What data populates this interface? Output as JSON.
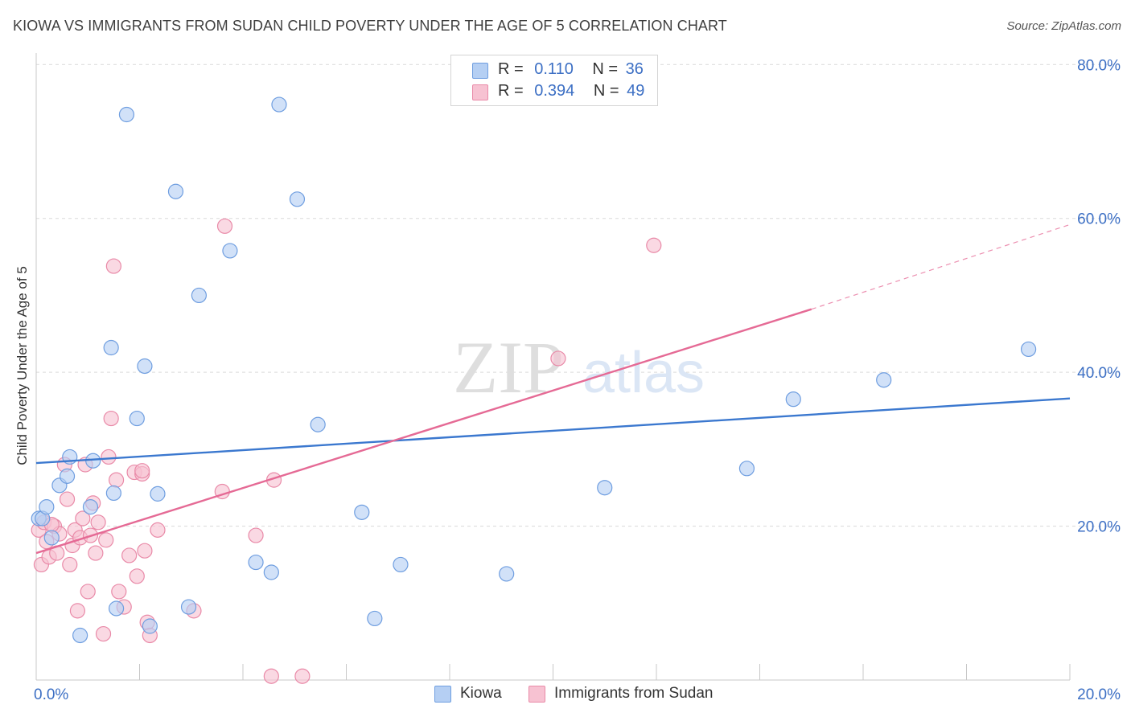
{
  "header": {
    "title": "KIOWA VS IMMIGRANTS FROM SUDAN CHILD POVERTY UNDER THE AGE OF 5 CORRELATION CHART",
    "source": "Source: ZipAtlas.com"
  },
  "watermark": {
    "part1": "ZIP",
    "part2": "atlas"
  },
  "colors": {
    "kiowa_fill": "#b5cff3",
    "kiowa_stroke": "#6f9ee0",
    "kiowa_line": "#3b78cf",
    "sudan_fill": "#f7c2d2",
    "sudan_stroke": "#e98aa8",
    "sudan_line": "#e56a95",
    "axis_text": "#3c6fc4",
    "grid": "#d9d9d9"
  },
  "legend_top": {
    "rows": [
      {
        "r_label": "R =",
        "r_value": "0.110",
        "n_label": "N =",
        "n_value": "36"
      },
      {
        "r_label": "R =",
        "r_value": "0.394",
        "n_label": "N =",
        "n_value": "49"
      }
    ]
  },
  "legend_bottom": {
    "kiowa": "Kiowa",
    "sudan": "Immigrants from Sudan"
  },
  "chart_data": {
    "type": "scatter",
    "title": "KIOWA VS IMMIGRANTS FROM SUDAN CHILD POVERTY UNDER THE AGE OF 5 CORRELATION CHART",
    "xlabel": "",
    "ylabel": "Child Poverty Under the Age of 5",
    "xlim": [
      0,
      20
    ],
    "ylim": [
      0,
      80
    ],
    "x_tick_labels": [
      "0.0%",
      "20.0%"
    ],
    "y_tick_labels": [
      "20.0%",
      "40.0%",
      "60.0%",
      "80.0%"
    ],
    "y_ticks": [
      20,
      40,
      60,
      80
    ],
    "grid": true,
    "series": [
      {
        "name": "Kiowa",
        "points": [
          [
            0.05,
            21.0
          ],
          [
            0.12,
            21.0
          ],
          [
            0.2,
            22.5
          ],
          [
            0.3,
            18.5
          ],
          [
            0.45,
            25.3
          ],
          [
            0.6,
            26.5
          ],
          [
            0.65,
            29.0
          ],
          [
            0.85,
            5.8
          ],
          [
            1.1,
            28.5
          ],
          [
            1.05,
            22.5
          ],
          [
            1.5,
            24.3
          ],
          [
            1.55,
            9.3
          ],
          [
            1.75,
            73.5
          ],
          [
            1.95,
            34.0
          ],
          [
            2.1,
            40.8
          ],
          [
            2.2,
            7.0
          ],
          [
            2.35,
            24.2
          ],
          [
            2.7,
            63.5
          ],
          [
            2.95,
            9.5
          ],
          [
            3.15,
            50.0
          ],
          [
            3.75,
            55.8
          ],
          [
            4.25,
            15.3
          ],
          [
            4.55,
            14.0
          ],
          [
            4.7,
            74.8
          ],
          [
            5.05,
            62.5
          ],
          [
            5.45,
            33.2
          ],
          [
            6.3,
            21.8
          ],
          [
            6.55,
            8.0
          ],
          [
            7.05,
            15.0
          ],
          [
            9.1,
            13.8
          ],
          [
            11.0,
            25.0
          ],
          [
            13.75,
            27.5
          ],
          [
            14.65,
            36.5
          ],
          [
            16.4,
            39.0
          ],
          [
            19.2,
            43.0
          ],
          [
            1.45,
            43.2
          ]
        ],
        "trend": {
          "x0": 0,
          "y0": 28.2,
          "x1": 20,
          "y1": 36.6
        }
      },
      {
        "name": "Immigrants from Sudan",
        "points": [
          [
            0.05,
            19.5
          ],
          [
            0.1,
            15.0
          ],
          [
            0.15,
            20.5
          ],
          [
            0.2,
            18.0
          ],
          [
            0.25,
            16.0
          ],
          [
            0.35,
            20.0
          ],
          [
            0.4,
            16.5
          ],
          [
            0.45,
            19.0
          ],
          [
            0.55,
            28.0
          ],
          [
            0.6,
            23.5
          ],
          [
            0.65,
            15.0
          ],
          [
            0.7,
            17.5
          ],
          [
            0.75,
            19.5
          ],
          [
            0.8,
            9.0
          ],
          [
            0.85,
            18.5
          ],
          [
            0.9,
            21.0
          ],
          [
            0.95,
            28.0
          ],
          [
            1.0,
            11.5
          ],
          [
            1.05,
            18.8
          ],
          [
            1.1,
            23.0
          ],
          [
            1.15,
            16.5
          ],
          [
            1.2,
            20.5
          ],
          [
            1.3,
            6.0
          ],
          [
            1.4,
            29.0
          ],
          [
            1.45,
            34.0
          ],
          [
            1.5,
            53.8
          ],
          [
            1.55,
            26.0
          ],
          [
            1.6,
            11.5
          ],
          [
            1.7,
            9.5
          ],
          [
            1.8,
            16.2
          ],
          [
            1.9,
            27.0
          ],
          [
            1.95,
            13.5
          ],
          [
            2.05,
            26.8
          ],
          [
            2.1,
            16.8
          ],
          [
            2.15,
            7.5
          ],
          [
            2.2,
            5.8
          ],
          [
            2.35,
            19.5
          ],
          [
            3.05,
            9.0
          ],
          [
            3.6,
            24.5
          ],
          [
            3.65,
            59.0
          ],
          [
            4.25,
            18.8
          ],
          [
            4.55,
            0.5
          ],
          [
            4.6,
            26.0
          ],
          [
            5.15,
            0.5
          ],
          [
            10.1,
            41.8
          ],
          [
            11.95,
            56.5
          ],
          [
            2.05,
            27.2
          ],
          [
            1.35,
            18.2
          ],
          [
            0.3,
            20.2
          ]
        ],
        "trend": {
          "x0": 0,
          "y0": 16.5,
          "x1": 15.0,
          "y1": 48.2
        },
        "trend_dashed": {
          "x0": 15.0,
          "y0": 48.2,
          "x1": 20,
          "y1": 59.2
        }
      }
    ]
  }
}
